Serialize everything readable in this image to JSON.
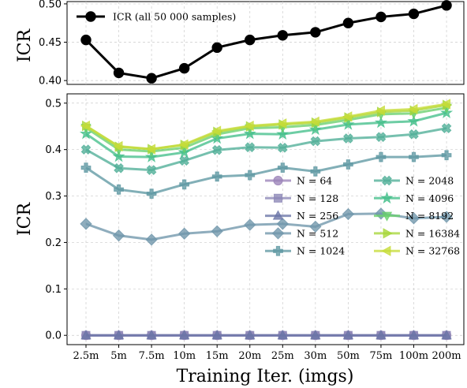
{
  "chart_data": [
    {
      "type": "line",
      "ylabel": "ICR",
      "xlabel": "",
      "categories": [
        "2.5m",
        "5m",
        "7.5m",
        "10m",
        "15m",
        "20m",
        "25m",
        "30m",
        "50m",
        "75m",
        "100m",
        "200m"
      ],
      "ylim": [
        0.395,
        0.503
      ],
      "yticks": [
        "0.40",
        "0.45",
        "0.50"
      ],
      "ytick_values": [
        0.4,
        0.45,
        0.5
      ],
      "grid": true,
      "legend_position": "top-left",
      "series": [
        {
          "name": "ICR (all 50 000 samples)",
          "color": "#000000",
          "marker": "circle",
          "values": [
            0.453,
            0.41,
            0.403,
            0.416,
            0.443,
            0.453,
            0.459,
            0.463,
            0.475,
            0.483,
            0.487,
            0.498
          ]
        }
      ]
    },
    {
      "type": "line",
      "ylabel": "ICR",
      "xlabel": "Training Iter. (imgs)",
      "categories": [
        "2.5m",
        "5m",
        "7.5m",
        "10m",
        "15m",
        "20m",
        "25m",
        "30m",
        "50m",
        "75m",
        "100m",
        "200m"
      ],
      "ylim": [
        -0.02,
        0.52
      ],
      "yticks": [
        "0.0",
        "0.1",
        "0.2",
        "0.3",
        "0.4",
        "0.5"
      ],
      "ytick_values": [
        0.0,
        0.1,
        0.2,
        0.3,
        0.4,
        0.5
      ],
      "grid": true,
      "legend_position": "center-right",
      "legend_columns": 2,
      "series": [
        {
          "name": "N = 64",
          "color": "#9b83b8",
          "marker": "circle",
          "values": [
            0,
            0,
            0,
            0,
            0,
            0,
            0,
            0,
            0,
            0,
            0,
            0
          ]
        },
        {
          "name": "N = 128",
          "color": "#8c86b6",
          "marker": "square",
          "values": [
            0,
            0,
            0,
            0,
            0,
            0,
            0,
            0,
            0,
            0,
            0,
            0
          ]
        },
        {
          "name": "N = 256",
          "color": "#6a74a6",
          "marker": "triangle",
          "values": [
            0,
            0,
            0,
            0,
            0,
            0,
            0,
            0,
            0,
            0,
            0,
            0
          ]
        },
        {
          "name": "N = 512",
          "color": "#6f96ab",
          "marker": "diamond",
          "values": [
            0.24,
            0.215,
            0.206,
            0.219,
            0.224,
            0.238,
            0.24,
            0.234,
            0.261,
            0.262,
            0.252,
            0.255
          ]
        },
        {
          "name": "N = 1024",
          "color": "#5f99a3",
          "marker": "plus",
          "values": [
            0.361,
            0.314,
            0.305,
            0.325,
            0.342,
            0.345,
            0.361,
            0.353,
            0.368,
            0.384,
            0.384,
            0.388
          ]
        },
        {
          "name": "N = 2048",
          "color": "#4fae97",
          "marker": "x",
          "values": [
            0.4,
            0.36,
            0.356,
            0.376,
            0.399,
            0.405,
            0.404,
            0.418,
            0.424,
            0.427,
            0.433,
            0.446
          ]
        },
        {
          "name": "N = 4096",
          "color": "#44bf8a",
          "marker": "star",
          "values": [
            0.434,
            0.385,
            0.384,
            0.394,
            0.424,
            0.434,
            0.433,
            0.443,
            0.454,
            0.458,
            0.461,
            0.479
          ]
        },
        {
          "name": "N = 8192",
          "color": "#69cf6b",
          "marker": "triangle-down",
          "values": [
            0.447,
            0.4,
            0.396,
            0.404,
            0.433,
            0.446,
            0.448,
            0.453,
            0.464,
            0.476,
            0.478,
            0.49
          ]
        },
        {
          "name": "N = 16384",
          "color": "#a6d63a",
          "marker": "triangle-right",
          "values": [
            0.451,
            0.406,
            0.401,
            0.41,
            0.438,
            0.45,
            0.454,
            0.458,
            0.469,
            0.481,
            0.484,
            0.496
          ]
        },
        {
          "name": "N = 32768",
          "color": "#c7dc3a",
          "marker": "triangle-left",
          "values": [
            0.451,
            0.407,
            0.401,
            0.411,
            0.44,
            0.451,
            0.456,
            0.46,
            0.471,
            0.484,
            0.487,
            0.498
          ]
        }
      ]
    }
  ]
}
